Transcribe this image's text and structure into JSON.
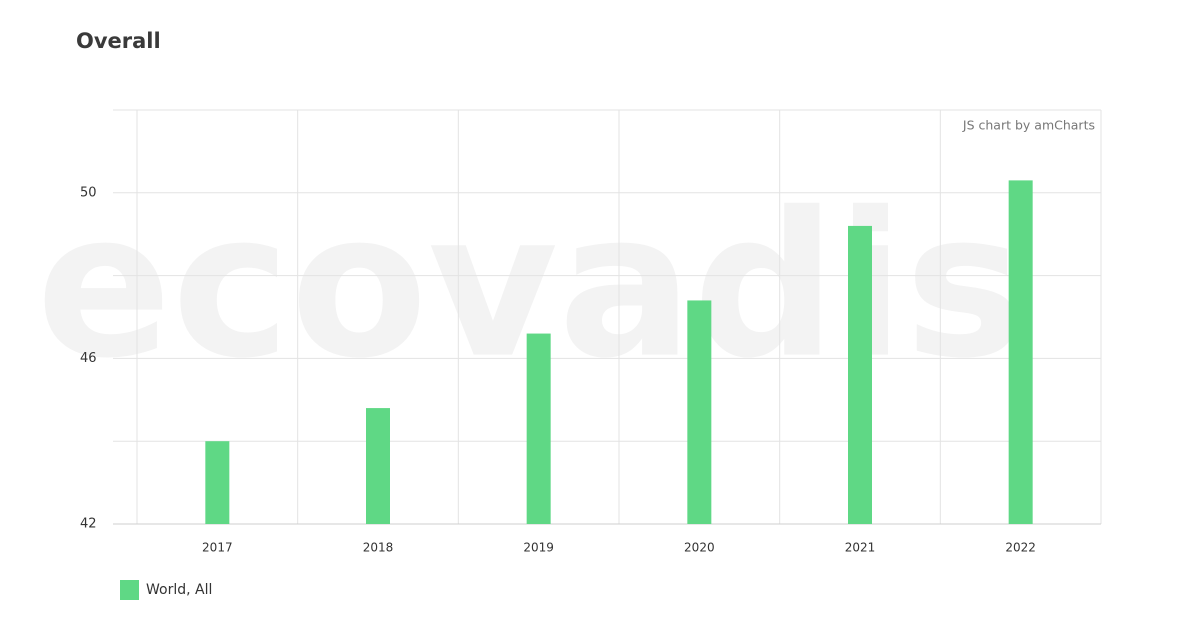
{
  "chart_data": {
    "type": "bar",
    "title": "Overall",
    "watermark": "ecovadis",
    "credit": "JS chart by amCharts",
    "categories": [
      "2017",
      "2018",
      "2019",
      "2020",
      "2021",
      "2022"
    ],
    "series": [
      {
        "name": "World, All",
        "color": "#5fd885",
        "values": [
          44.0,
          44.8,
          46.6,
          47.4,
          49.2,
          50.3
        ]
      }
    ],
    "ylim": [
      42,
      52
    ],
    "yticks": [
      42,
      46,
      50
    ],
    "minor_yticks": [
      44,
      48,
      52
    ],
    "grid": true,
    "legend": "bottom-left"
  }
}
